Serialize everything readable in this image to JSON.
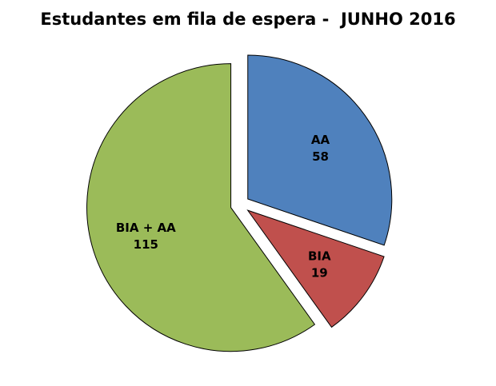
{
  "chart_data": {
    "type": "pie",
    "title": "Estudantes em fila de espera -  JUNHO 2016",
    "labels": [
      "AA",
      "BIA",
      "BIA + AA"
    ],
    "values": [
      58,
      19,
      115
    ],
    "total": 192,
    "colors": [
      "#4f81bd",
      "#c0504d",
      "#9bbb59"
    ],
    "slice_border_color": "#000000",
    "background": "#ffffff",
    "start_angle_deg": 0,
    "direction": "clockwise",
    "exploded": true,
    "legend": "none",
    "data_labels": "category name and value inside each slice"
  }
}
